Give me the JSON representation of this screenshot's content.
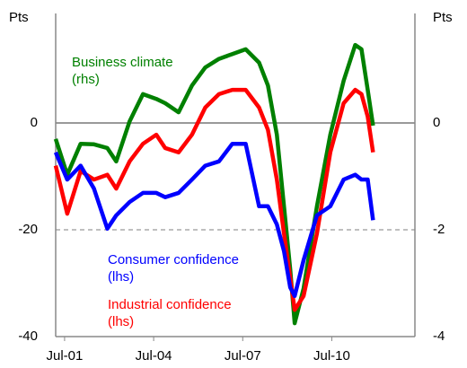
{
  "chart_data": {
    "type": "line",
    "ylabel": "Pts",
    "y2label": "Pts",
    "x": [
      2001.2,
      2001.59,
      2002.04,
      2002.49,
      2002.94,
      2003.24,
      2003.69,
      2004.14,
      2004.59,
      2004.89,
      2005.34,
      2005.79,
      2006.24,
      2006.7,
      2007.15,
      2007.6,
      2008.05,
      2008.35,
      2008.65,
      2008.89,
      2009.1,
      2009.25,
      2009.55,
      2010.0,
      2010.45,
      2010.9,
      2011.29,
      2011.5,
      2011.71,
      2011.89
    ],
    "series": [
      {
        "name": "Business climate (rhs)",
        "color": "#008000",
        "axis": "y2",
        "values": [
          -0.3,
          -0.97,
          -0.39,
          -0.4,
          -0.47,
          -0.72,
          0.03,
          0.54,
          0.45,
          0.37,
          0.2,
          0.7,
          1.04,
          1.2,
          1.29,
          1.38,
          1.13,
          0.7,
          -0.22,
          -1.56,
          -2.74,
          -3.75,
          -3.1,
          -1.56,
          -0.22,
          0.79,
          1.46,
          1.38,
          0.62,
          -0.05
        ]
      },
      {
        "name": "Industrial confidence (lhs)",
        "color": "#ff0000",
        "values": [
          -8,
          -17,
          -9,
          -10.6,
          -9.7,
          -12.3,
          -7.2,
          -3.9,
          -2.2,
          -4.7,
          -5.5,
          -2.2,
          2.9,
          5.4,
          6.2,
          6.2,
          2.9,
          -1.3,
          -10.6,
          -20.7,
          -29,
          -35,
          -32.4,
          -20.7,
          -5.5,
          3.7,
          6.2,
          5.4,
          1.2,
          -5.5
        ]
      },
      {
        "name": "Consumer confidence (lhs)",
        "color": "#0000ff",
        "values": [
          -5.5,
          -10.6,
          -8,
          -12.3,
          -19.8,
          -17.3,
          -14.8,
          -13.1,
          -13.1,
          -13.9,
          -13.1,
          -10.6,
          -8,
          -7.2,
          -3.9,
          -3.9,
          -15.6,
          -15.6,
          -19,
          -24,
          -30.8,
          -32.4,
          -25.7,
          -17.3,
          -15.6,
          -10.6,
          -9.7,
          -10.6,
          -10.6,
          -18.2
        ]
      }
    ],
    "annotations": [
      {
        "lines": [
          "Business climate",
          "(rhs)"
        ],
        "color": "#008000"
      },
      {
        "lines": [
          "Consumer confidence",
          "(lhs)"
        ],
        "color": "#0000ff"
      },
      {
        "lines": [
          "Industrial confidence",
          "(lhs)"
        ],
        "color": "#ff0000"
      }
    ],
    "xlim": [
      2001.2,
      2013.3
    ],
    "xticks": [
      {
        "value": 2001.5,
        "label": "Jul-01"
      },
      {
        "value": 2004.5,
        "label": "Jul-04"
      },
      {
        "value": 2007.5,
        "label": "Jul-07"
      },
      {
        "value": 2010.5,
        "label": "Jul-10"
      }
    ],
    "ylim": [
      -40,
      20.5
    ],
    "yticks": [
      -40,
      -20,
      0
    ],
    "y2lim": [
      -4,
      2.05
    ],
    "y2ticks": [
      -4,
      -2,
      0
    ],
    "grid": true
  }
}
